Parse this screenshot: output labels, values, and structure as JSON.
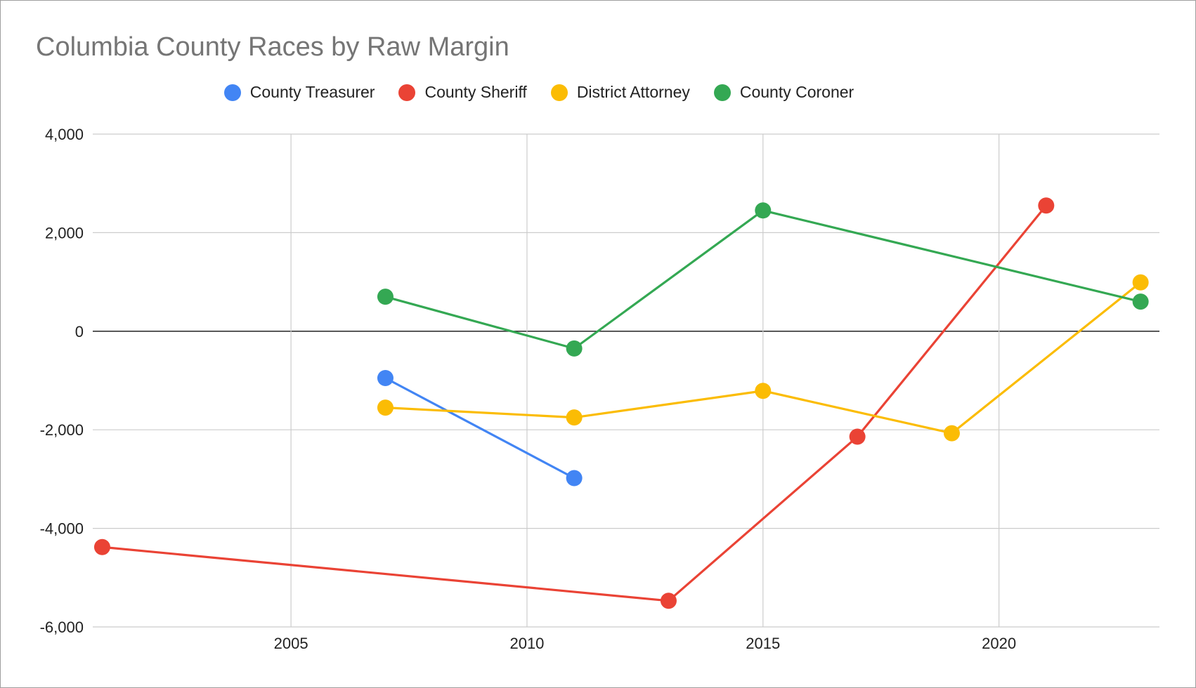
{
  "chart_data": {
    "type": "line",
    "title": "Columbia County Races by Raw Margin",
    "xlabel": "",
    "ylabel": "",
    "xlim": [
      2000.8,
      2023.4
    ],
    "ylim": [
      -6000,
      4000
    ],
    "x_ticks": [
      2005,
      2010,
      2015,
      2020
    ],
    "x_tick_labels": [
      "2005",
      "2010",
      "2015",
      "2020"
    ],
    "y_ticks": [
      -6000,
      -4000,
      -2000,
      0,
      2000,
      4000
    ],
    "y_tick_labels": [
      "-6,000",
      "-4,000",
      "-2,000",
      "0",
      "2,000",
      "4,000"
    ],
    "grid": true,
    "legend_position": "top",
    "series": [
      {
        "name": "County Treasurer",
        "color": "#4285f4",
        "points": [
          [
            2007,
            -950
          ],
          [
            2011,
            -2980
          ]
        ]
      },
      {
        "name": "County Sheriff",
        "color": "#ea4335",
        "points": [
          [
            2001,
            -4380
          ],
          [
            2013,
            -5470
          ],
          [
            2017,
            -2140
          ],
          [
            2021,
            2550
          ]
        ]
      },
      {
        "name": "District Attorney",
        "color": "#fbbc04",
        "points": [
          [
            2007,
            -1550
          ],
          [
            2011,
            -1750
          ],
          [
            2015,
            -1210
          ],
          [
            2019,
            -2070
          ],
          [
            2023,
            990
          ]
        ]
      },
      {
        "name": "County Coroner",
        "color": "#34a853",
        "points": [
          [
            2007,
            700
          ],
          [
            2011,
            -350
          ],
          [
            2015,
            2450
          ],
          [
            2023,
            600
          ]
        ]
      }
    ]
  }
}
